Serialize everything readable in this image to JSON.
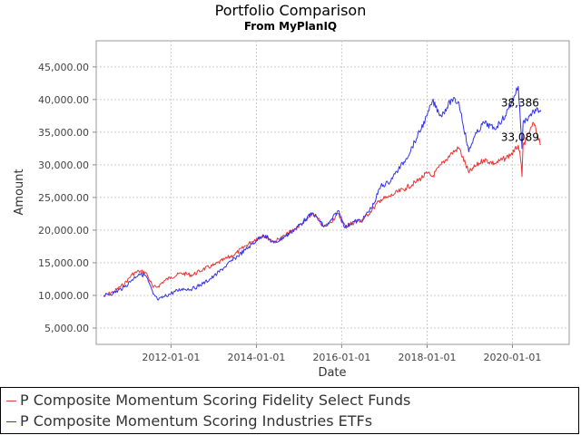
{
  "chart_data": {
    "type": "line",
    "title": "Portfolio Comparison",
    "subtitle": "From MyPlanIQ",
    "xlabel": "Date",
    "ylabel": "Amount",
    "xlim": [
      "2010-04-01",
      "2021-05-01"
    ],
    "ylim": [
      2500,
      49000
    ],
    "x_ticks": [
      "2012-01-01",
      "2014-01-01",
      "2016-01-01",
      "2018-01-01",
      "2020-01-01"
    ],
    "y_ticks": [
      "5,000.00",
      "10,000.00",
      "15,000.00",
      "20,000.00",
      "25,000.00",
      "30,000.00",
      "35,000.00",
      "40,000.00",
      "45,000.00"
    ],
    "y_tick_values": [
      5000,
      10000,
      15000,
      20000,
      25000,
      30000,
      35000,
      40000,
      45000
    ],
    "grid": true,
    "legend_placement": "bottom",
    "series": [
      {
        "name": "P Composite Momentum Scoring Fidelity Select Funds",
        "color": "#ee3333",
        "end_label": "33,089",
        "x": [
          "2010-06-01",
          "2010-09-01",
          "2010-12-01",
          "2011-02-01",
          "2011-04-01",
          "2011-06-01",
          "2011-08-01",
          "2011-09-15",
          "2011-11-01",
          "2012-01-01",
          "2012-04-01",
          "2012-07-01",
          "2012-10-01",
          "2013-01-01",
          "2013-04-01",
          "2013-07-01",
          "2013-10-01",
          "2014-01-01",
          "2014-03-01",
          "2014-06-01",
          "2014-09-01",
          "2014-12-01",
          "2015-03-01",
          "2015-05-01",
          "2015-08-01",
          "2015-09-15",
          "2015-12-01",
          "2016-02-01",
          "2016-04-01",
          "2016-07-01",
          "2016-10-01",
          "2016-12-01",
          "2017-02-01",
          "2017-04-01",
          "2017-07-01",
          "2017-10-01",
          "2018-01-01",
          "2018-02-15",
          "2018-05-01",
          "2018-08-01",
          "2018-10-01",
          "2018-12-24",
          "2019-02-01",
          "2019-05-01",
          "2019-08-01",
          "2019-11-01",
          "2020-01-15",
          "2020-02-20",
          "2020-03-10",
          "2020-03-23",
          "2020-04-01",
          "2020-05-01",
          "2020-07-01",
          "2020-09-01"
        ],
        "y": [
          9900,
          10600,
          11800,
          13200,
          13700,
          13500,
          11200,
          11400,
          12200,
          12800,
          13400,
          13100,
          14000,
          14600,
          15500,
          16300,
          17600,
          18700,
          19300,
          18200,
          19100,
          20200,
          21500,
          22600,
          20500,
          21000,
          22500,
          20500,
          21100,
          21600,
          23400,
          24700,
          25000,
          25600,
          26400,
          27400,
          28700,
          28200,
          30000,
          31800,
          32600,
          28800,
          29500,
          30800,
          30200,
          31000,
          32000,
          33000,
          31000,
          28200,
          33000,
          34000,
          36400,
          33089
        ]
      },
      {
        "name": "P Composite Momentum Scoring Industries ETFs",
        "color": "#3333ee",
        "end_label": "38,386",
        "x": [
          "2010-06-01",
          "2010-09-01",
          "2010-12-01",
          "2011-02-01",
          "2011-04-01",
          "2011-06-01",
          "2011-08-01",
          "2011-09-15",
          "2011-11-01",
          "2012-01-01",
          "2012-04-01",
          "2012-07-01",
          "2012-10-01",
          "2013-01-01",
          "2013-04-01",
          "2013-07-01",
          "2013-10-01",
          "2014-01-01",
          "2014-03-01",
          "2014-06-01",
          "2014-09-01",
          "2014-12-01",
          "2015-03-01",
          "2015-05-01",
          "2015-08-01",
          "2015-09-15",
          "2015-12-01",
          "2016-02-01",
          "2016-04-01",
          "2016-07-01",
          "2016-10-01",
          "2016-12-01",
          "2017-02-01",
          "2017-04-01",
          "2017-07-01",
          "2017-10-01",
          "2018-01-01",
          "2018-02-15",
          "2018-05-01",
          "2018-08-01",
          "2018-10-01",
          "2018-12-24",
          "2019-02-01",
          "2019-05-01",
          "2019-08-01",
          "2019-11-01",
          "2020-01-15",
          "2020-02-20",
          "2020-03-10",
          "2020-03-23",
          "2020-04-01",
          "2020-05-01",
          "2020-07-01",
          "2020-09-01"
        ],
        "y": [
          9900,
          10400,
          11300,
          12400,
          13300,
          13000,
          10200,
          9300,
          9800,
          10300,
          11000,
          11000,
          11800,
          12900,
          14300,
          15700,
          17000,
          18400,
          19300,
          18000,
          19000,
          20200,
          21700,
          22600,
          20500,
          21000,
          23000,
          20400,
          21200,
          21600,
          24000,
          26800,
          27200,
          28600,
          30800,
          34000,
          37500,
          39800,
          37500,
          40000,
          39500,
          32000,
          34000,
          36500,
          35500,
          37500,
          40500,
          42000,
          36500,
          32500,
          36500,
          37000,
          38200,
          38386
        ]
      }
    ]
  }
}
